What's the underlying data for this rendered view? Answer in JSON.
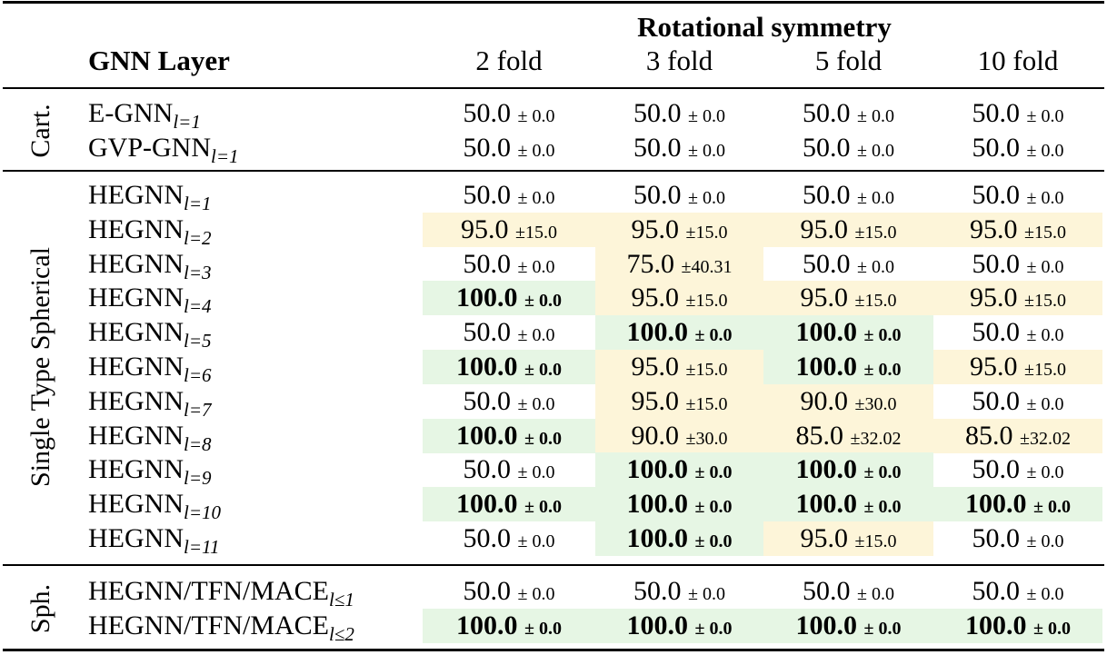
{
  "header": {
    "group_title": "Rotational symmetry",
    "layer_title": "GNN Layer",
    "columns": [
      "2 fold",
      "3 fold",
      "5 fold",
      "10 fold"
    ]
  },
  "groups": [
    {
      "label": "Cart.",
      "rows": [
        {
          "layer": "E-GNN",
          "sub": "l=1",
          "cells": [
            [
              "50.0",
              "± 0.0",
              "none"
            ],
            [
              "50.0",
              "± 0.0",
              "none"
            ],
            [
              "50.0",
              "± 0.0",
              "none"
            ],
            [
              "50.0",
              "± 0.0",
              "none"
            ]
          ]
        },
        {
          "layer": "GVP-GNN",
          "sub": "l=1",
          "cells": [
            [
              "50.0",
              "± 0.0",
              "none"
            ],
            [
              "50.0",
              "± 0.0",
              "none"
            ],
            [
              "50.0",
              "± 0.0",
              "none"
            ],
            [
              "50.0",
              "± 0.0",
              "none"
            ]
          ]
        }
      ]
    },
    {
      "label": "Single Type Spherical",
      "rows": [
        {
          "layer": "HEGNN",
          "sub": "l=1",
          "cells": [
            [
              "50.0",
              "± 0.0",
              "none"
            ],
            [
              "50.0",
              "± 0.0",
              "none"
            ],
            [
              "50.0",
              "± 0.0",
              "none"
            ],
            [
              "50.0",
              "± 0.0",
              "none"
            ]
          ]
        },
        {
          "layer": "HEGNN",
          "sub": "l=2",
          "cells": [
            [
              "95.0",
              "±15.0",
              "yellow"
            ],
            [
              "95.0",
              "±15.0",
              "yellow"
            ],
            [
              "95.0",
              "±15.0",
              "yellow"
            ],
            [
              "95.0",
              "±15.0",
              "yellow"
            ]
          ]
        },
        {
          "layer": "HEGNN",
          "sub": "l=3",
          "cells": [
            [
              "50.0",
              "± 0.0",
              "none"
            ],
            [
              "75.0",
              "±40.31",
              "yellow"
            ],
            [
              "50.0",
              "± 0.0",
              "none"
            ],
            [
              "50.0",
              "± 0.0",
              "none"
            ]
          ]
        },
        {
          "layer": "HEGNN",
          "sub": "l=4",
          "cells": [
            [
              "100.0",
              "± 0.0",
              "green"
            ],
            [
              "95.0",
              "±15.0",
              "yellow"
            ],
            [
              "95.0",
              "±15.0",
              "yellow"
            ],
            [
              "95.0",
              "±15.0",
              "yellow"
            ]
          ]
        },
        {
          "layer": "HEGNN",
          "sub": "l=5",
          "cells": [
            [
              "50.0",
              "± 0.0",
              "none"
            ],
            [
              "100.0",
              "± 0.0",
              "green"
            ],
            [
              "100.0",
              "± 0.0",
              "green"
            ],
            [
              "50.0",
              "± 0.0",
              "none"
            ]
          ]
        },
        {
          "layer": "HEGNN",
          "sub": "l=6",
          "cells": [
            [
              "100.0",
              "± 0.0",
              "green"
            ],
            [
              "95.0",
              "±15.0",
              "yellow"
            ],
            [
              "100.0",
              "± 0.0",
              "green"
            ],
            [
              "95.0",
              "±15.0",
              "yellow"
            ]
          ]
        },
        {
          "layer": "HEGNN",
          "sub": "l=7",
          "cells": [
            [
              "50.0",
              "± 0.0",
              "none"
            ],
            [
              "95.0",
              "±15.0",
              "yellow"
            ],
            [
              "90.0",
              "±30.0",
              "yellow"
            ],
            [
              "50.0",
              "± 0.0",
              "none"
            ]
          ]
        },
        {
          "layer": "HEGNN",
          "sub": "l=8",
          "cells": [
            [
              "100.0",
              "± 0.0",
              "green"
            ],
            [
              "90.0",
              "±30.0",
              "yellow"
            ],
            [
              "85.0",
              "±32.02",
              "yellow"
            ],
            [
              "85.0",
              "±32.02",
              "yellow"
            ]
          ]
        },
        {
          "layer": "HEGNN",
          "sub": "l=9",
          "cells": [
            [
              "50.0",
              "± 0.0",
              "none"
            ],
            [
              "100.0",
              "± 0.0",
              "green"
            ],
            [
              "100.0",
              "± 0.0",
              "green"
            ],
            [
              "50.0",
              "± 0.0",
              "none"
            ]
          ]
        },
        {
          "layer": "HEGNN",
          "sub": "l=10",
          "cells": [
            [
              "100.0",
              "± 0.0",
              "green"
            ],
            [
              "100.0",
              "± 0.0",
              "green"
            ],
            [
              "100.0",
              "± 0.0",
              "green"
            ],
            [
              "100.0",
              "± 0.0",
              "green"
            ]
          ]
        },
        {
          "layer": "HEGNN",
          "sub": "l=11",
          "cells": [
            [
              "50.0",
              "± 0.0",
              "none"
            ],
            [
              "100.0",
              "± 0.0",
              "green"
            ],
            [
              "95.0",
              "±15.0",
              "yellow"
            ],
            [
              "50.0",
              "± 0.0",
              "none"
            ]
          ]
        }
      ]
    },
    {
      "label": "Sph.",
      "rows": [
        {
          "layer": "HEGNN/TFN/MACE",
          "sub": "l≤1",
          "cells": [
            [
              "50.0",
              "± 0.0",
              "none"
            ],
            [
              "50.0",
              "± 0.0",
              "none"
            ],
            [
              "50.0",
              "± 0.0",
              "none"
            ],
            [
              "50.0",
              "± 0.0",
              "none"
            ]
          ]
        },
        {
          "layer": "HEGNN/TFN/MACE",
          "sub": "l≤2",
          "cells": [
            [
              "100.0",
              "± 0.0",
              "green"
            ],
            [
              "100.0",
              "± 0.0",
              "green"
            ],
            [
              "100.0",
              "± 0.0",
              "green"
            ],
            [
              "100.0",
              "± 0.0",
              "green"
            ]
          ]
        }
      ]
    }
  ]
}
